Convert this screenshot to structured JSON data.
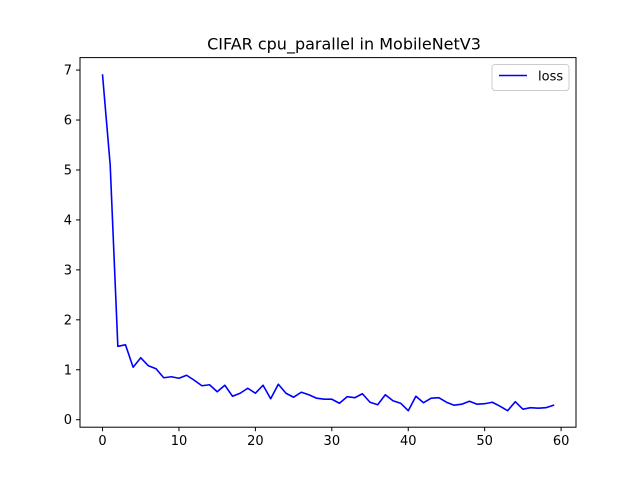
{
  "chart_data": {
    "type": "line",
    "title": "CIFAR cpu_parallel in MobileNetV3",
    "xlabel": "",
    "ylabel": "",
    "xlim": [
      -2.95,
      61.95
    ],
    "ylim": [
      -0.15,
      7.25
    ],
    "xticks": [
      0,
      10,
      20,
      30,
      40,
      50,
      60
    ],
    "yticks": [
      0,
      1,
      2,
      3,
      4,
      5,
      6,
      7
    ],
    "grid": false,
    "legend": {
      "placement": "top-right"
    },
    "series": [
      {
        "name": "loss",
        "color": "#0000ff",
        "x": [
          0,
          1,
          2,
          3,
          4,
          5,
          6,
          7,
          8,
          9,
          10,
          11,
          12,
          13,
          14,
          15,
          16,
          17,
          18,
          19,
          20,
          21,
          22,
          23,
          24,
          25,
          26,
          27,
          28,
          29,
          30,
          31,
          32,
          33,
          34,
          35,
          36,
          37,
          38,
          39,
          40,
          41,
          42,
          43,
          44,
          45,
          46,
          47,
          48,
          49,
          50,
          51,
          52,
          53,
          54,
          55,
          56,
          57,
          58,
          59
        ],
        "y": [
          6.9,
          5.1,
          1.47,
          1.5,
          1.05,
          1.24,
          1.08,
          1.02,
          0.84,
          0.86,
          0.83,
          0.89,
          0.79,
          0.68,
          0.7,
          0.56,
          0.69,
          0.47,
          0.53,
          0.63,
          0.53,
          0.69,
          0.42,
          0.71,
          0.53,
          0.45,
          0.55,
          0.5,
          0.43,
          0.41,
          0.41,
          0.33,
          0.46,
          0.44,
          0.52,
          0.35,
          0.3,
          0.5,
          0.38,
          0.33,
          0.18,
          0.47,
          0.34,
          0.43,
          0.44,
          0.35,
          0.29,
          0.31,
          0.37,
          0.31,
          0.32,
          0.35,
          0.27,
          0.18,
          0.36,
          0.21,
          0.24,
          0.23,
          0.24,
          0.29
        ]
      }
    ]
  }
}
